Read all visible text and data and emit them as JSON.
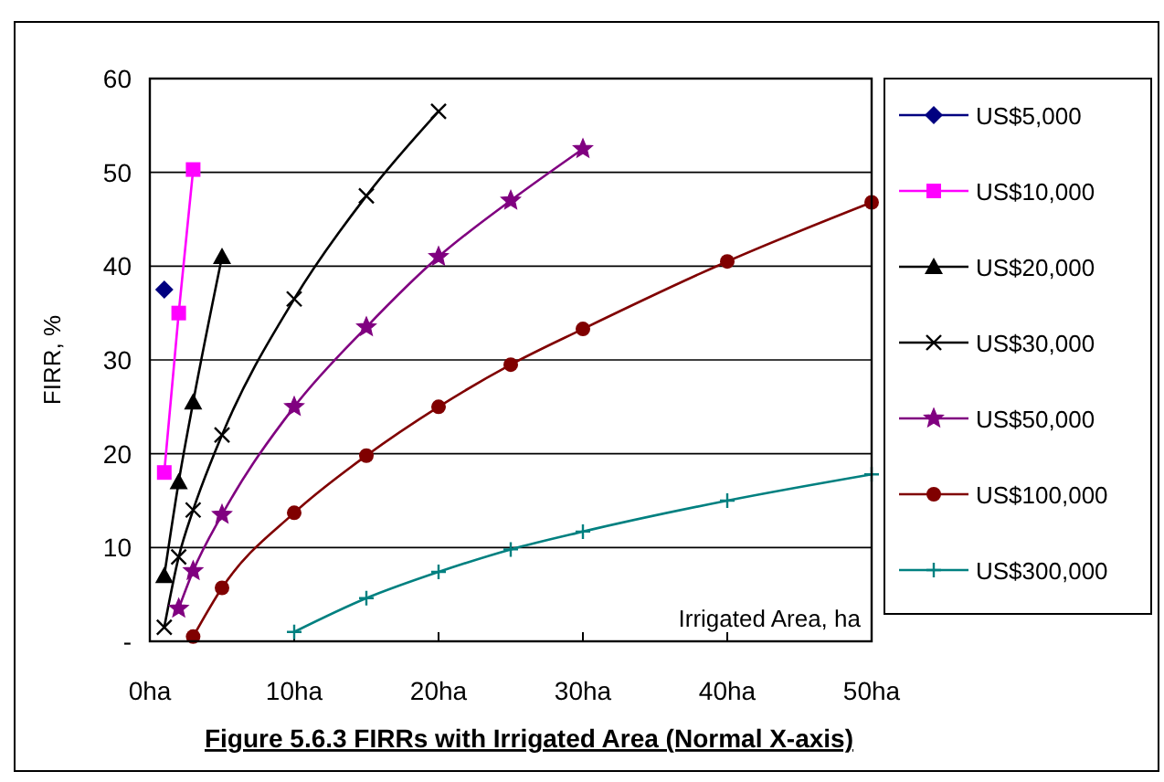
{
  "chart_data": {
    "type": "line",
    "title": "Figure 5.6.3 FIRRs with Irrigated Area (Normal X-axis)",
    "xlabel": "Irrigated Area, ha",
    "ylabel": "FIRR, %",
    "xlim": [
      0,
      50
    ],
    "xticks": [
      {
        "value": 0,
        "label": "0ha"
      },
      {
        "value": 10,
        "label": "10ha"
      },
      {
        "value": 20,
        "label": "20ha"
      },
      {
        "value": 30,
        "label": "30ha"
      },
      {
        "value": 40,
        "label": "40ha"
      },
      {
        "value": 50,
        "label": "50ha"
      }
    ],
    "ylim": [
      0,
      60
    ],
    "yticks": [
      {
        "value": 0,
        "label": "-"
      },
      10,
      20,
      30,
      40,
      50,
      60
    ],
    "grid": "y",
    "legend": "right",
    "line_style": "solid",
    "series": [
      {
        "name": "US$5,000",
        "color": "#000080",
        "marker": "diamond",
        "x": [
          1
        ],
        "values": [
          37.5
        ]
      },
      {
        "name": "US$10,000",
        "color": "#ff00ff",
        "marker": "square",
        "x": [
          1,
          2,
          3
        ],
        "values": [
          18,
          35,
          50.3
        ]
      },
      {
        "name": "US$20,000",
        "color": "#000000",
        "marker": "triangle",
        "x": [
          1,
          2,
          3,
          5
        ],
        "values": [
          7,
          17,
          25.5,
          41
        ]
      },
      {
        "name": "US$30,000",
        "color": "#000000",
        "marker": "cross",
        "x": [
          1,
          2,
          3,
          5,
          10,
          15,
          20
        ],
        "values": [
          1.5,
          9,
          14,
          22,
          36.5,
          47.5,
          56.5
        ]
      },
      {
        "name": "US$50,000",
        "color": "#800080",
        "marker": "star",
        "x": [
          2,
          3,
          5,
          10,
          15,
          20,
          25,
          30
        ],
        "values": [
          3.5,
          7.5,
          13.5,
          25,
          33.5,
          41,
          47,
          52.5
        ]
      },
      {
        "name": "US$100,000",
        "color": "#800000",
        "marker": "circle",
        "x": [
          3,
          5,
          10,
          15,
          20,
          25,
          30,
          40,
          50
        ],
        "values": [
          0.5,
          5.7,
          13.7,
          19.8,
          25,
          29.5,
          33.3,
          40.5,
          46.8
        ]
      },
      {
        "name": "US$300,000",
        "color": "#008080",
        "marker": "plus",
        "x": [
          10,
          15,
          20,
          25,
          30,
          40,
          50
        ],
        "values": [
          1,
          4.6,
          7.4,
          9.8,
          11.7,
          15,
          17.8
        ]
      }
    ]
  }
}
